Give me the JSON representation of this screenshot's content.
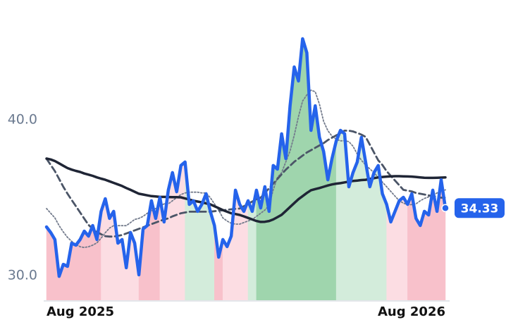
{
  "chart_data": {
    "type": "line",
    "categories": [
      "Aug 2025",
      null,
      null,
      null,
      null,
      null,
      null,
      null,
      null,
      null,
      null,
      null,
      null,
      null,
      null,
      null,
      null,
      null,
      null,
      null,
      null,
      null,
      null,
      null,
      null,
      null,
      null,
      null,
      null,
      null,
      null,
      null,
      null,
      null,
      null,
      null,
      null,
      null,
      null,
      null,
      null,
      null,
      null,
      null,
      null,
      null,
      null,
      null,
      null,
      null,
      null,
      null,
      null,
      null,
      null,
      null,
      null,
      null,
      null,
      null,
      null,
      null,
      null,
      null,
      null,
      null,
      null,
      null,
      null,
      null,
      null,
      null,
      null,
      null,
      null,
      null,
      null,
      null,
      null,
      null,
      null,
      null,
      null,
      null,
      null,
      null,
      null,
      null,
      null,
      null,
      null,
      null,
      null,
      null,
      null,
      "Aug 2026"
    ],
    "series": [
      {
        "color": "#2563eb",
        "line_style": "solid",
        "label_last": true,
        "values": [
          33.12,
          32.76,
          32.31,
          29.95,
          30.72,
          30.59,
          32.08,
          31.95,
          32.31,
          32.85,
          32.53,
          33.21,
          32.31,
          34.12,
          34.93,
          33.67,
          34.12,
          32.08,
          32.31,
          30.5,
          32.76,
          32.08,
          30.05,
          32.99,
          33.21,
          34.8,
          33.67,
          35.02,
          33.44,
          35.48,
          36.61,
          35.38,
          37.06,
          37.29,
          34.57,
          34.8,
          34.12,
          34.57,
          35.25,
          34.12,
          33.21,
          31.18,
          32.31,
          31.86,
          32.53,
          35.48,
          34.57,
          34.12,
          34.8,
          34.12,
          35.48,
          34.34,
          35.7,
          34.12,
          37.06,
          36.83,
          39.1,
          37.51,
          40.9,
          43.39,
          42.49,
          45.2,
          44.3,
          39.32,
          40.9,
          38.87,
          37.96,
          36.15,
          37.51,
          38.64,
          39.32,
          39.1,
          35.7,
          36.61,
          37.29,
          38.87,
          37.29,
          35.7,
          36.61,
          37.06,
          35.25,
          34.57,
          33.44,
          34.12,
          34.8,
          35.02,
          34.57,
          35.25,
          33.67,
          33.21,
          34.12,
          33.89,
          35.48,
          34.12,
          36.15,
          34.33
        ]
      },
      {
        "color": "#1f2535",
        "line_style": "solid",
        "values": [
          37.51,
          37.45,
          37.35,
          37.2,
          37.05,
          36.9,
          36.8,
          36.72,
          36.65,
          36.55,
          36.48,
          36.4,
          36.3,
          36.22,
          36.15,
          36.05,
          35.95,
          35.85,
          35.75,
          35.62,
          35.5,
          35.38,
          35.25,
          35.2,
          35.15,
          35.1,
          35.08,
          35.05,
          35.05,
          35.04,
          35.03,
          35.03,
          35.02,
          34.95,
          34.88,
          34.8,
          34.75,
          34.7,
          34.63,
          34.57,
          34.45,
          34.33,
          34.2,
          34.1,
          34.0,
          33.95,
          33.89,
          33.8,
          33.7,
          33.6,
          33.5,
          33.44,
          33.45,
          33.5,
          33.6,
          33.75,
          33.9,
          34.15,
          34.4,
          34.65,
          34.9,
          35.1,
          35.3,
          35.48,
          35.55,
          35.62,
          35.7,
          35.78,
          35.85,
          35.9,
          35.93,
          35.98,
          36.03,
          36.07,
          36.1,
          36.13,
          36.15,
          36.2,
          36.25,
          36.3,
          36.33,
          36.35,
          36.37,
          36.38,
          36.38,
          36.37,
          36.36,
          36.35,
          36.33,
          36.3,
          36.28,
          36.27,
          36.27,
          36.28,
          36.29,
          36.3
        ]
      },
      {
        "color": "#4b5567",
        "line_style": "dashed",
        "values": [
          37.5,
          37.1,
          36.7,
          36.2,
          35.7,
          35.25,
          34.85,
          34.45,
          34.05,
          33.65,
          33.25,
          33.0,
          32.8,
          32.65,
          32.53,
          32.5,
          32.5,
          32.55,
          32.6,
          32.7,
          32.8,
          32.9,
          33.0,
          33.1,
          33.2,
          33.3,
          33.4,
          33.5,
          33.6,
          33.67,
          33.8,
          33.9,
          34.0,
          34.05,
          34.1,
          34.1,
          34.1,
          34.1,
          34.1,
          34.1,
          34.13,
          34.16,
          34.19,
          34.22,
          34.25,
          34.28,
          34.3,
          34.45,
          34.6,
          34.75,
          34.9,
          35.0,
          35.3,
          35.6,
          35.9,
          36.2,
          36.5,
          36.8,
          37.05,
          37.3,
          37.5,
          37.7,
          37.9,
          38.05,
          38.2,
          38.35,
          38.5,
          38.7,
          38.85,
          39.0,
          39.15,
          39.3,
          39.3,
          39.25,
          39.15,
          39.05,
          38.9,
          38.4,
          37.9,
          37.4,
          37.1,
          36.7,
          36.4,
          36.1,
          35.8,
          35.5,
          35.45,
          35.4,
          35.3,
          35.25,
          35.2,
          35.15,
          35.1,
          35.05,
          35.0,
          35.0
        ]
      },
      {
        "color": "#737b8c",
        "line_style": "dotted",
        "values": [
          34.3,
          34.0,
          33.7,
          33.2,
          32.8,
          32.45,
          32.2,
          32.0,
          31.85,
          31.8,
          31.85,
          31.95,
          32.1,
          32.4,
          32.75,
          33.05,
          33.2,
          33.2,
          33.2,
          33.2,
          33.4,
          33.6,
          33.67,
          33.8,
          34.0,
          34.15,
          34.3,
          34.45,
          34.6,
          34.6,
          34.8,
          35.0,
          35.2,
          35.3,
          35.35,
          35.35,
          35.35,
          35.3,
          35.3,
          35.0,
          34.6,
          34.2,
          33.7,
          33.5,
          33.35,
          33.3,
          33.3,
          33.4,
          33.5,
          33.6,
          33.8,
          34.0,
          34.2,
          34.5,
          35.5,
          36.3,
          36.6,
          37.3,
          38.0,
          39.0,
          40.2,
          41.2,
          41.6,
          41.9,
          41.8,
          41.0,
          39.9,
          39.3,
          38.95,
          38.75,
          38.65,
          38.65,
          38.6,
          38.3,
          37.8,
          37.4,
          37.1,
          36.85,
          36.6,
          36.3,
          36.0,
          35.7,
          35.4,
          35.1,
          34.8,
          34.65,
          34.55,
          34.55,
          34.6,
          34.8,
          34.95,
          35.05,
          35.15,
          35.3,
          35.4,
          35.5
        ]
      }
    ],
    "bands": [
      {
        "start": 0,
        "end": 13,
        "color": "#f8c1cb"
      },
      {
        "start": 13,
        "end": 22,
        "color": "#fcdde3"
      },
      {
        "start": 22,
        "end": 27,
        "color": "#f8c1cb"
      },
      {
        "start": 27,
        "end": 33,
        "color": "#fcdde3"
      },
      {
        "start": 33,
        "end": 40,
        "color": "#d3ecdb"
      },
      {
        "start": 40,
        "end": 42,
        "color": "#f8c1cb"
      },
      {
        "start": 42,
        "end": 48,
        "color": "#fcdde3"
      },
      {
        "start": 48,
        "end": 50,
        "color": "#d3ecdb"
      },
      {
        "start": 50,
        "end": 69,
        "color": "#9fd5ad"
      },
      {
        "start": 69,
        "end": 81,
        "color": "#d3ecdb"
      },
      {
        "start": 81,
        "end": 86,
        "color": "#fcdde3"
      },
      {
        "start": 86,
        "end": 95,
        "color": "#f8c1cb"
      }
    ],
    "ylim": [
      28.37,
      47.69
    ],
    "yticks": [
      {
        "value": 30,
        "label": "30.0"
      },
      {
        "value": 40,
        "label": "40.0"
      }
    ],
    "grid": false
  }
}
